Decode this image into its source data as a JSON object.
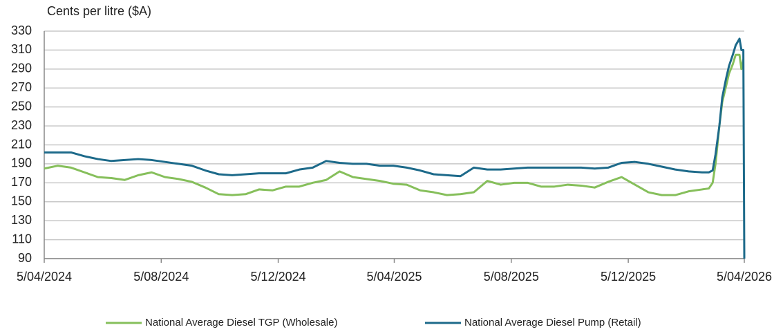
{
  "chart_data": {
    "type": "line",
    "y_label": "Cents per litre ($A)",
    "x": [
      "5/04/2024",
      "19/04/2024",
      "3/05/2024",
      "17/05/2024",
      "31/05/2024",
      "14/06/2024",
      "28/06/2024",
      "12/07/2024",
      "26/07/2024",
      "9/08/2024",
      "23/08/2024",
      "6/09/2024",
      "20/09/2024",
      "4/10/2024",
      "18/10/2024",
      "1/11/2024",
      "15/11/2024",
      "29/11/2024",
      "13/12/2024",
      "27/12/2024",
      "10/01/2025",
      "24/01/2025",
      "7/02/2025",
      "21/02/2025",
      "7/03/2025",
      "21/03/2025",
      "4/04/2025",
      "18/04/2025",
      "2/05/2025",
      "16/05/2025",
      "30/05/2025",
      "13/06/2025",
      "27/06/2025",
      "11/07/2025",
      "25/07/2025",
      "8/08/2025",
      "22/08/2025",
      "5/09/2025",
      "19/09/2025",
      "3/10/2025",
      "17/10/2025",
      "31/10/2025",
      "14/11/2025",
      "28/11/2025",
      "12/12/2025",
      "26/12/2025",
      "9/01/2026",
      "23/01/2026",
      "6/02/2026",
      "20/02/2026",
      "27/02/2026",
      "3/03/2026",
      "6/03/2026",
      "10/03/2026",
      "13/03/2026",
      "17/03/2026",
      "20/03/2026",
      "24/03/2026",
      "27/03/2026",
      "31/03/2026",
      "2/04/2026",
      "4/04/2026",
      "5/04/2026"
    ],
    "series": [
      {
        "name": "National Average Diesel TGP (Wholesale)",
        "color": "#86bf5b",
        "values": [
          185,
          188,
          186,
          181,
          176,
          175,
          173,
          178,
          181,
          176,
          174,
          171,
          165,
          158,
          157,
          158,
          163,
          162,
          166,
          166,
          170,
          173,
          182,
          176,
          174,
          172,
          169,
          168,
          162,
          160,
          157,
          158,
          160,
          172,
          168,
          170,
          170,
          166,
          166,
          168,
          167,
          165,
          171,
          176,
          168,
          160,
          157,
          157,
          161,
          163,
          164,
          170,
          190,
          230,
          255,
          272,
          285,
          295,
          305,
          305,
          290,
          300,
          300
        ]
      },
      {
        "name": "National Average Diesel Pump (Retail)",
        "color": "#1d6a8a",
        "values": [
          202,
          202,
          202,
          198,
          195,
          193,
          194,
          195,
          194,
          192,
          190,
          188,
          183,
          179,
          178,
          179,
          180,
          180,
          180,
          184,
          186,
          193,
          191,
          190,
          190,
          188,
          188,
          186,
          183,
          179,
          178,
          177,
          186,
          184,
          184,
          185,
          186,
          186,
          186,
          186,
          186,
          185,
          186,
          191,
          192,
          190,
          187,
          184,
          182,
          181,
          181,
          183,
          200,
          230,
          260,
          280,
          293,
          305,
          315,
          322,
          310,
          310,
          90
        ]
      }
    ],
    "xlim": [
      "5/04/2024",
      "5/04/2026"
    ],
    "xticks": [
      "5/04/2024",
      "5/08/2024",
      "5/12/2024",
      "5/04/2025",
      "5/08/2025",
      "5/12/2025",
      "5/04/2026"
    ],
    "ylim": [
      90,
      330
    ],
    "yticks": [
      90,
      110,
      130,
      150,
      170,
      190,
      210,
      230,
      250,
      270,
      290,
      310,
      330
    ],
    "grid": true,
    "legend": "bottom"
  }
}
